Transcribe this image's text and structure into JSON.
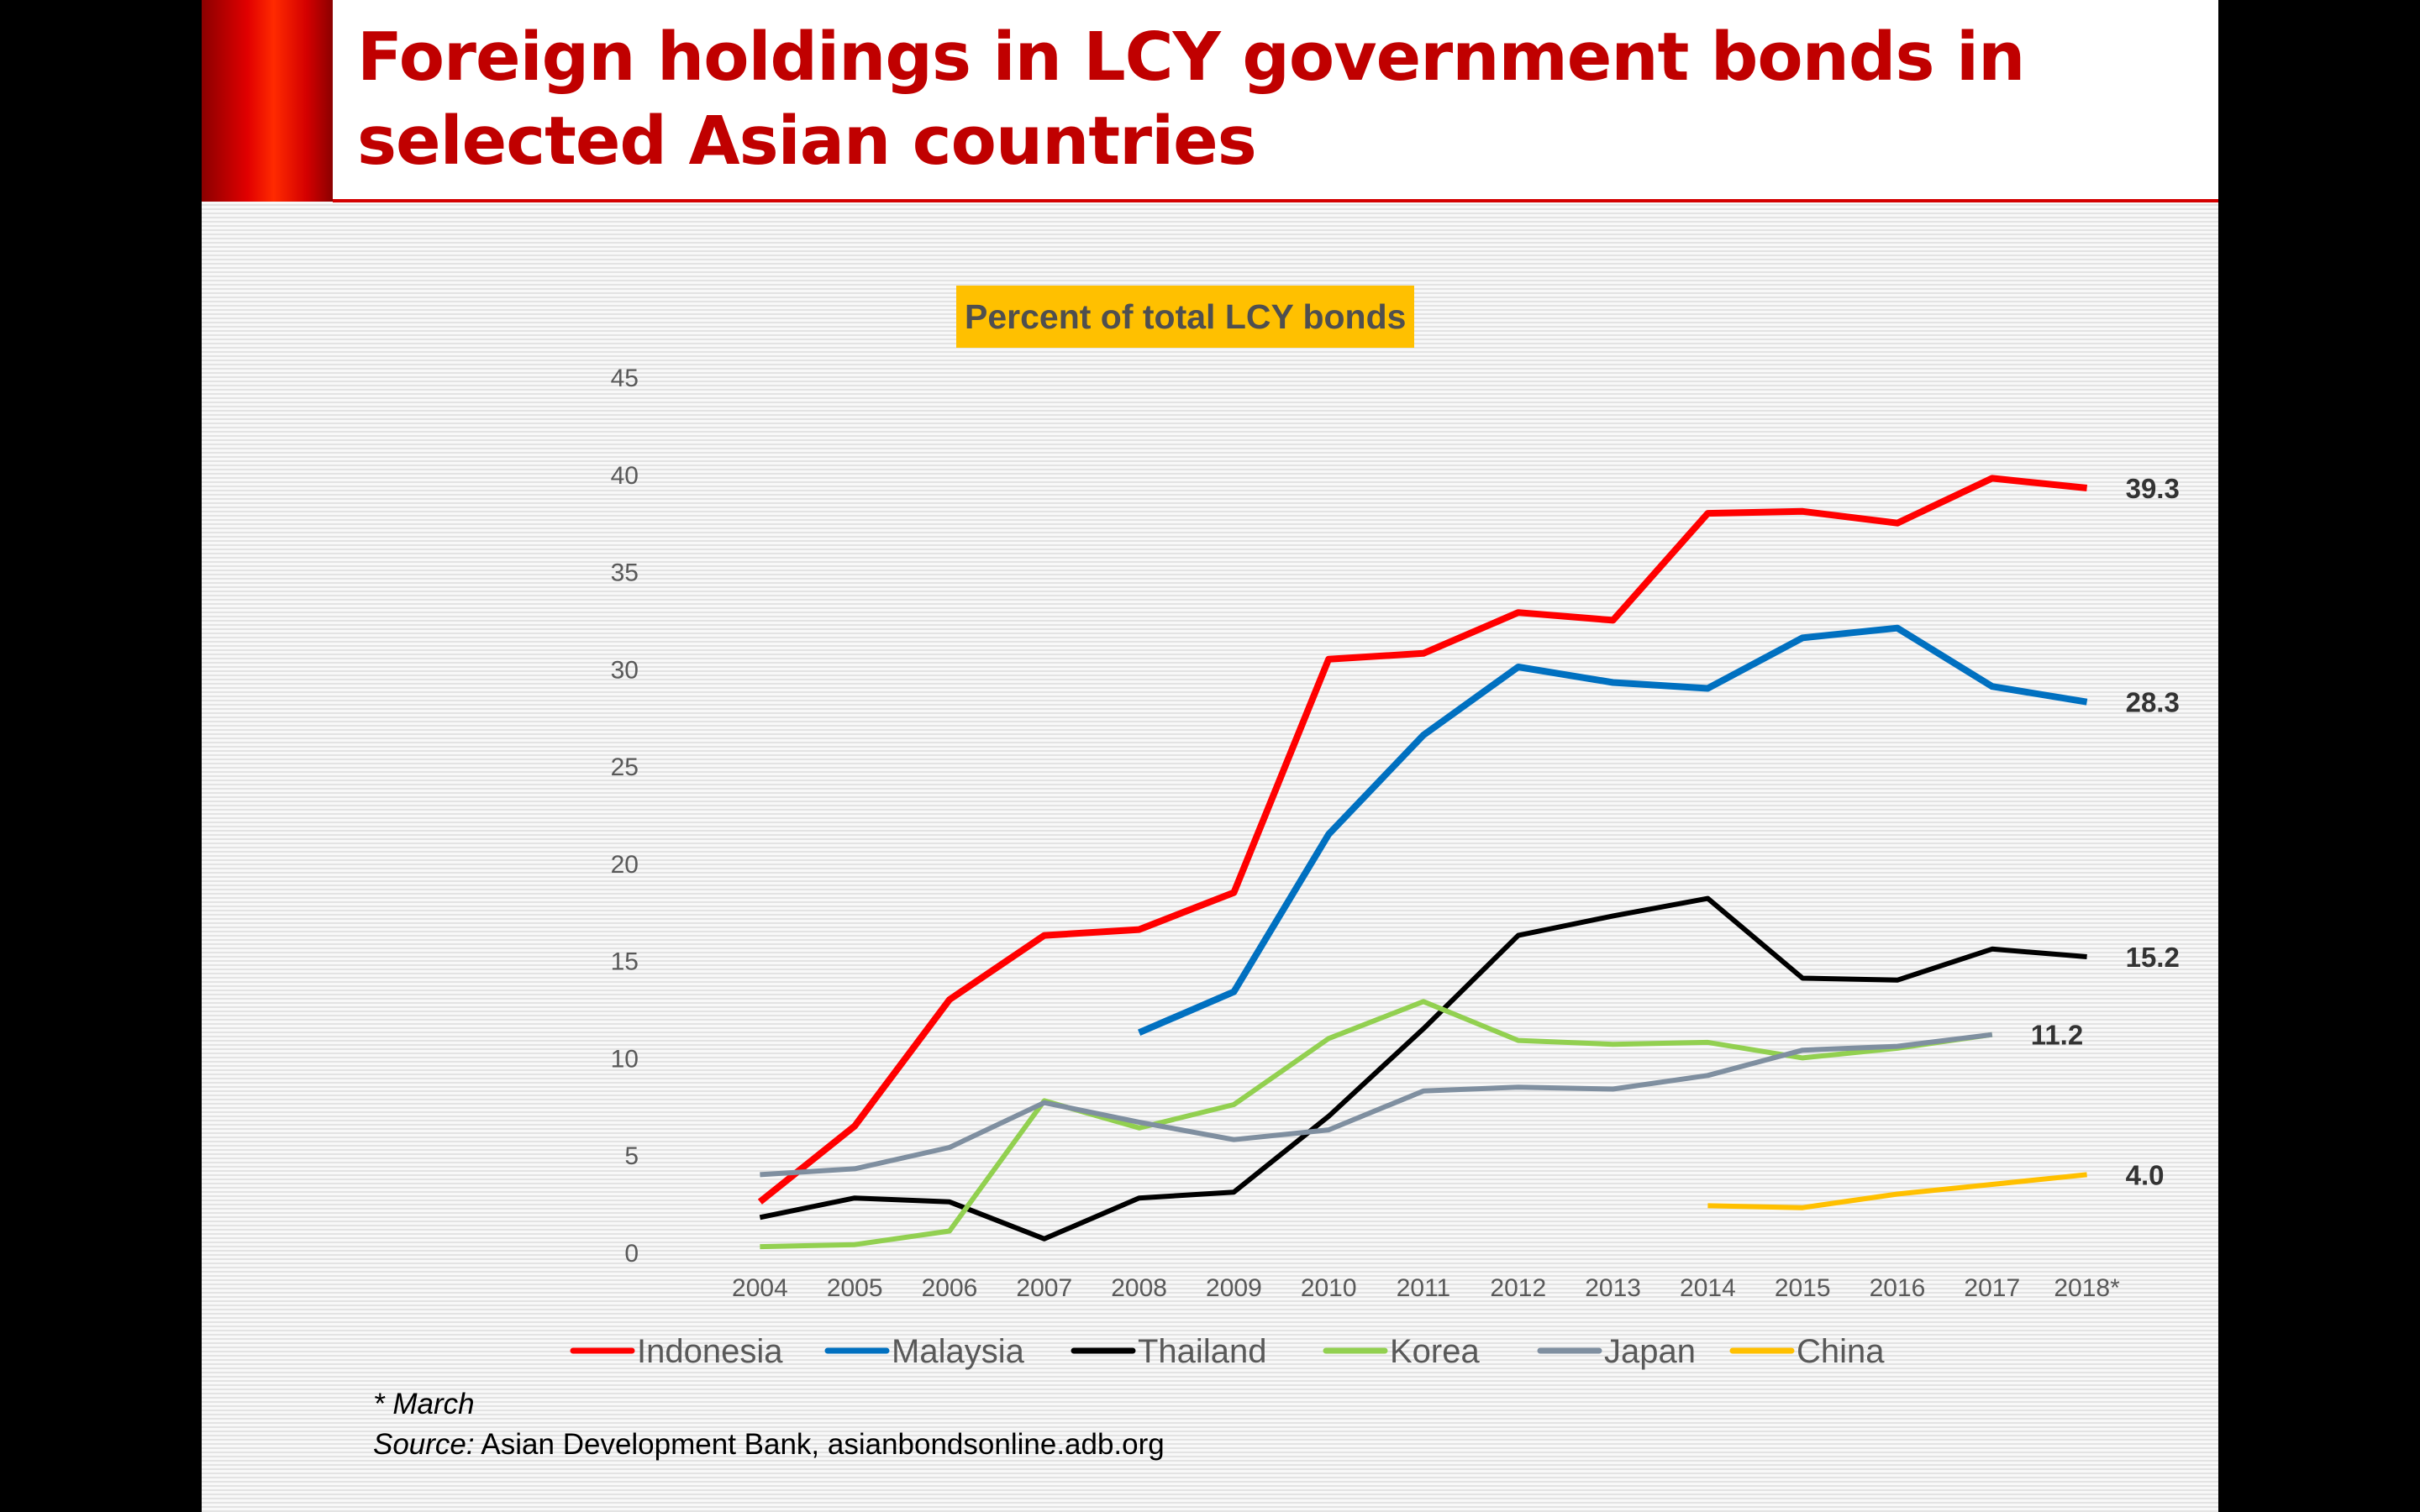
{
  "slide": {
    "title": "Foreign holdings in LCY government bonds in selected Asian countries",
    "footnote": "* March",
    "source_prefix": "Source:",
    "source_text": "Asian Development Bank, asianbondsonline.adb.org",
    "colors": {
      "title": "#c00000",
      "accent_bar": "#e10000",
      "subtitle_bg": "#ffc000"
    }
  },
  "chart_data": {
    "type": "line",
    "title": "Percent of total LCY bonds",
    "xlabel": "",
    "ylabel": "",
    "ylim": [
      0,
      45
    ],
    "yticks": [
      0,
      5,
      10,
      15,
      20,
      25,
      30,
      35,
      40,
      45
    ],
    "categories": [
      "2004",
      "2005",
      "2006",
      "2007",
      "2008",
      "2009",
      "2010",
      "2011",
      "2012",
      "2013",
      "2014",
      "2015",
      "2016",
      "2017",
      "2018*"
    ],
    "legend_position": "bottom",
    "series": [
      {
        "name": "Indonesia",
        "color": "#ff0000",
        "values": [
          2.6,
          6.5,
          13.0,
          16.3,
          16.6,
          18.5,
          30.5,
          30.8,
          32.9,
          32.5,
          38.0,
          38.1,
          37.5,
          39.8,
          39.3
        ],
        "end_label": "39.3"
      },
      {
        "name": "Malaysia",
        "color": "#0070c0",
        "values": [
          null,
          null,
          null,
          null,
          11.3,
          13.4,
          21.5,
          26.6,
          30.1,
          29.3,
          29.0,
          31.6,
          32.1,
          29.1,
          28.3
        ],
        "end_label": "28.3"
      },
      {
        "name": "Thailand",
        "color": "#000000",
        "values": [
          1.8,
          2.8,
          2.6,
          0.7,
          2.8,
          3.1,
          7.0,
          11.5,
          16.3,
          17.3,
          18.2,
          14.1,
          14.0,
          15.6,
          15.2
        ],
        "end_label": "15.2"
      },
      {
        "name": "Korea",
        "color": "#92d050",
        "values": [
          0.3,
          0.4,
          1.1,
          7.8,
          6.4,
          7.6,
          11.0,
          12.9,
          10.9,
          10.7,
          10.8,
          10.0,
          10.5,
          11.2,
          null
        ],
        "end_label": ""
      },
      {
        "name": "Japan",
        "color": "#7f8fa0",
        "values": [
          4.0,
          4.3,
          5.4,
          7.7,
          6.7,
          5.8,
          6.3,
          8.3,
          8.5,
          8.4,
          9.1,
          10.4,
          10.6,
          11.2,
          null
        ],
        "end_label": "11.2"
      },
      {
        "name": "China",
        "color": "#ffc000",
        "values": [
          null,
          null,
          null,
          null,
          null,
          null,
          null,
          null,
          null,
          null,
          2.4,
          2.3,
          3.0,
          3.5,
          4.0
        ],
        "end_label": "4.0"
      }
    ]
  }
}
